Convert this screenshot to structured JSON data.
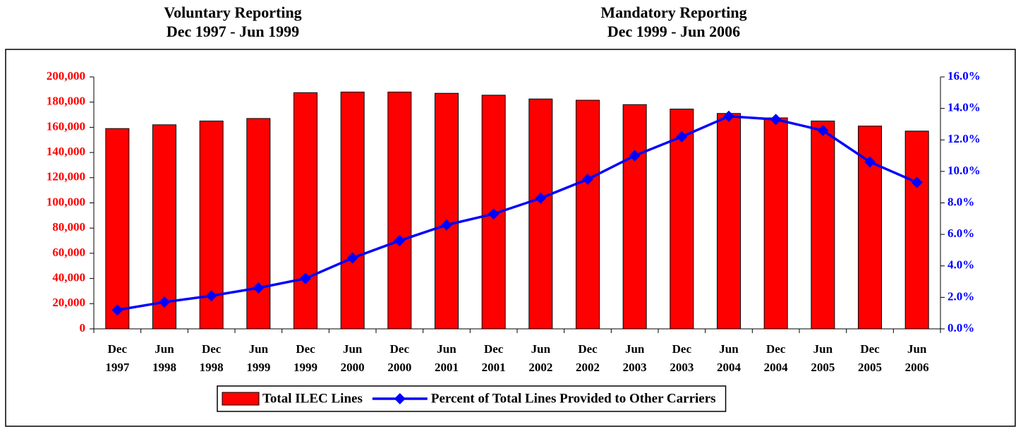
{
  "chart_data": {
    "type": "bar_line",
    "annotations": [
      "Voluntary Reporting",
      "Dec 1997 - Jun 1999",
      "Mandatory Reporting",
      "Dec 1999 - Jun 2006"
    ],
    "categories": [
      "Dec 1997",
      "Jun 1998",
      "Dec 1998",
      "Jun 1999",
      "Dec 1999",
      "Jun 2000",
      "Dec 2000",
      "Jun 2001",
      "Dec 2001",
      "Jun 2002",
      "Dec 2002",
      "Jun 2003",
      "Dec 2003",
      "Jun 2004",
      "Dec 2004",
      "Jun 2005",
      "Dec 2005",
      "Jun 2006"
    ],
    "series": [
      {
        "name": "Total ILEC Lines",
        "type": "bar",
        "color": "#ff0000",
        "values": [
          159000,
          162000,
          165000,
          167000,
          187500,
          188000,
          188000,
          187000,
          185500,
          182500,
          181500,
          178000,
          174500,
          171000,
          167500,
          165000,
          161000,
          157000
        ]
      },
      {
        "name": "Percent of Total Lines Provided to Other Carriers",
        "type": "line",
        "axis": "y2",
        "color": "#0000ff",
        "values": [
          1.2,
          1.7,
          2.1,
          2.6,
          3.2,
          4.5,
          5.6,
          6.6,
          7.3,
          8.3,
          9.5,
          11.0,
          12.2,
          13.5,
          13.3,
          12.6,
          10.6,
          9.3
        ]
      }
    ],
    "ylim": [
      0,
      200000
    ],
    "yticks": [
      0,
      {
        "value": 20000,
        "label": "20,000"
      },
      {
        "value": 40000,
        "label": "40,000"
      },
      {
        "value": 60000,
        "label": "60,000"
      },
      {
        "value": 80000,
        "label": "80,000"
      },
      {
        "value": 100000,
        "label": "100,000"
      },
      {
        "value": 120000,
        "label": "120,000"
      },
      {
        "value": 140000,
        "label": "140,000"
      },
      {
        "value": 160000,
        "label": "160,000"
      },
      {
        "value": 180000,
        "label": "180,000"
      },
      {
        "value": 200000,
        "label": "200,000"
      }
    ],
    "y2lim": [
      0,
      16
    ],
    "y2ticks": [
      {
        "value": 0,
        "label": "0.0%"
      },
      {
        "value": 2,
        "label": "2.0%"
      },
      {
        "value": 4,
        "label": "4.0%"
      },
      {
        "value": 6,
        "label": "6.0%"
      },
      {
        "value": 8,
        "label": "8.0%"
      },
      {
        "value": 10,
        "label": "10.0%"
      },
      {
        "value": 12,
        "label": "12.0%"
      },
      {
        "value": 14,
        "label": "14.0%"
      },
      {
        "value": 16,
        "label": "16.0%"
      }
    ],
    "ytick_color": "#ff0000",
    "y2tick_color": "#0000ff",
    "legend": "bottom"
  }
}
